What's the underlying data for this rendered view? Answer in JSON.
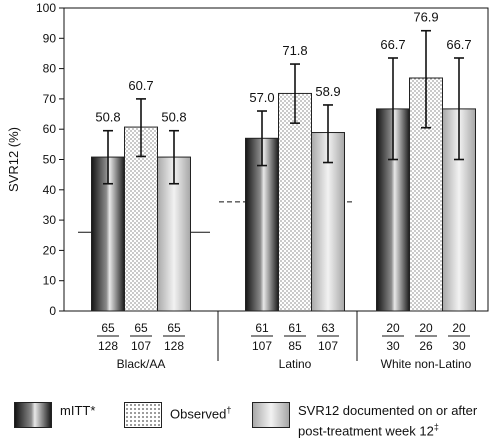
{
  "chart_data": {
    "type": "bar",
    "ylabel": "SVR12 (%)",
    "ylim": [
      0,
      100
    ],
    "yticks": [
      0,
      10,
      20,
      30,
      40,
      50,
      60,
      70,
      80,
      90,
      100
    ],
    "categories": [
      "Black/AA",
      "Latino",
      "White non-Latino"
    ],
    "series": [
      {
        "name": "mITT*",
        "values": [
          50.8,
          57.0,
          66.7
        ],
        "error_low": [
          42.0,
          48.0,
          50.0
        ],
        "error_high": [
          59.5,
          66.0,
          83.5
        ]
      },
      {
        "name": "Observed†",
        "values": [
          60.7,
          71.8,
          76.9
        ],
        "error_low": [
          51.0,
          62.0,
          60.5
        ],
        "error_high": [
          70.0,
          81.5,
          92.5
        ]
      },
      {
        "name": "SVR12 documented on or after post-treatment week 12‡",
        "values": [
          50.8,
          58.9,
          66.7
        ],
        "error_low": [
          42.0,
          49.0,
          50.0
        ],
        "error_high": [
          59.5,
          68.0,
          83.5
        ]
      }
    ],
    "value_labels": [
      [
        "50.8",
        "60.7",
        "50.8"
      ],
      [
        "57.0",
        "71.8",
        "58.9"
      ],
      [
        "66.7",
        "76.9",
        "66.7"
      ]
    ],
    "fractions": [
      [
        {
          "num": "65",
          "den": "128"
        },
        {
          "num": "65",
          "den": "107"
        },
        {
          "num": "65",
          "den": "128"
        }
      ],
      [
        {
          "num": "61",
          "den": "107"
        },
        {
          "num": "61",
          "den": "85"
        },
        {
          "num": "63",
          "den": "107"
        }
      ],
      [
        {
          "num": "20",
          "den": "30"
        },
        {
          "num": "20",
          "den": "26"
        },
        {
          "num": "20",
          "den": "30"
        }
      ]
    ],
    "reference_lines": [
      {
        "group": "Black/AA",
        "value": 26,
        "style": "solid"
      },
      {
        "group": "Latino",
        "value": 36,
        "style": "dashed"
      }
    ],
    "grid": false,
    "legend_position": "bottom"
  },
  "legend": [
    {
      "label": "mITT",
      "mark": "*"
    },
    {
      "label": "Observed",
      "mark": "†"
    },
    {
      "label": "SVR12 documented on or after",
      "label2": "post-treatment week 12",
      "mark": "‡"
    }
  ]
}
